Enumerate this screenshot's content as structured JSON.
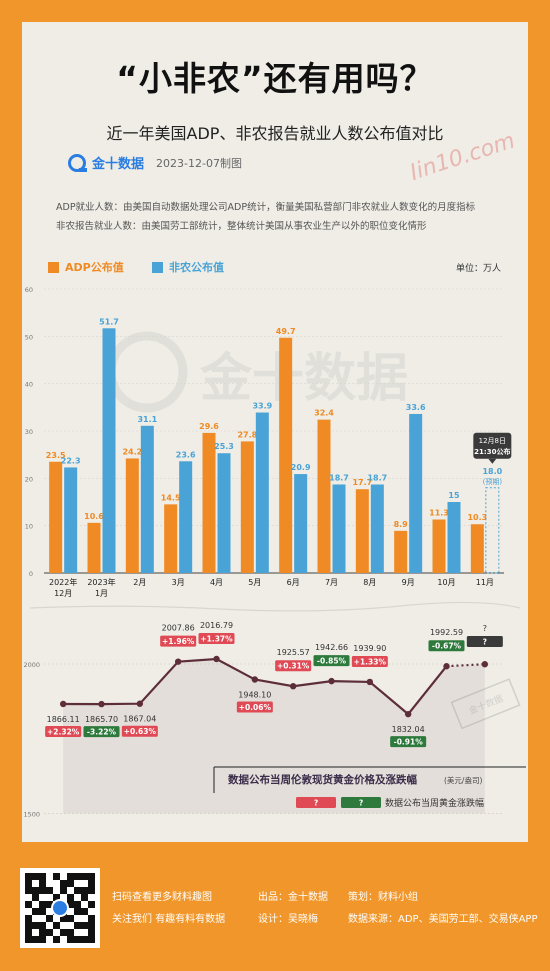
{
  "header": {
    "title": "“小非农”还有用吗？",
    "subtitle": "近一年美国ADP、非农报告就业人数公布值对比",
    "logo_text": "金十数据",
    "date": "2023-12-07制图",
    "watermark": "金十数据",
    "signature": "Jin10.com"
  },
  "descriptions": [
    "ADP就业人数：由美国自动数据处理公司ADP统计，衡量美国私营部门非农就业人数变化的月度指标",
    "非农报告就业人数：由美国劳工部统计，整体统计美国从事农业生产以外的职位变化情形"
  ],
  "legend": {
    "adp": "ADP公布值",
    "nfp": "非农公布值",
    "unit": "单位：万人"
  },
  "colors": {
    "adp": "#ef8a24",
    "nfp": "#4aa3d6",
    "line": "#5d2e3a",
    "up": "#e04a55",
    "down": "#2e7a3c",
    "dark": "#3a3a3a"
  },
  "chart_data": [
    {
      "type": "bar",
      "categories": [
        "2022年\n12月",
        "2023年\n1月",
        "2月",
        "3月",
        "4月",
        "5月",
        "6月",
        "7月",
        "8月",
        "9月",
        "10月",
        "11月"
      ],
      "series": [
        {
          "name": "ADP公布值",
          "values": [
            23.5,
            10.6,
            24.2,
            14.5,
            29.6,
            27.8,
            49.7,
            32.4,
            17.7,
            8.9,
            11.3,
            10.3
          ]
        },
        {
          "name": "非农公布值",
          "values": [
            22.3,
            51.7,
            31.1,
            23.6,
            25.3,
            33.9,
            20.9,
            18.7,
            18.7,
            33.6,
            15,
            18.0
          ]
        }
      ],
      "pending": {
        "series": "非农公布值",
        "category": "11月",
        "value": 18.0,
        "label": "18.0",
        "note": "(预期)",
        "callout": [
          "12月8日",
          "21:30公布"
        ]
      },
      "yticks": [
        0,
        10,
        20,
        30,
        40,
        50,
        60
      ],
      "ylim": [
        0,
        60
      ]
    },
    {
      "type": "line",
      "title": "数据公布当周伦敦现货黄金价格及涨跌幅",
      "unit_note": "(美元/盎司)",
      "values": [
        1866.11,
        1865.7,
        1867.04,
        2007.86,
        2016.79,
        1948.1,
        1925.57,
        1942.66,
        1939.9,
        1832.04,
        1992.59
      ],
      "changes": [
        "+2.32%",
        "-3.22%",
        "+0.63%",
        "+1.96%",
        "+1.37%",
        "+0.06%",
        "+0.31%",
        "-0.85%",
        "+1.33%",
        "-0.91%",
        "-0.67%"
      ],
      "pending": {
        "value_label": "?",
        "change_label": "?"
      },
      "yticks": [
        1500,
        2000
      ],
      "legend_up": "?",
      "legend_down": "?",
      "legend_text": "数据公布当周黄金涨跌幅"
    }
  ],
  "footer": {
    "scan_text": "扫码查看更多财料趣图",
    "follow_text": "关注我们 有趣有料有数据",
    "producer": "出品：金十数据",
    "planner": "策划：财料小组",
    "designer": "设计：吴晓梅",
    "source": "数据来源：ADP、美国劳工部、交易侠APP"
  }
}
